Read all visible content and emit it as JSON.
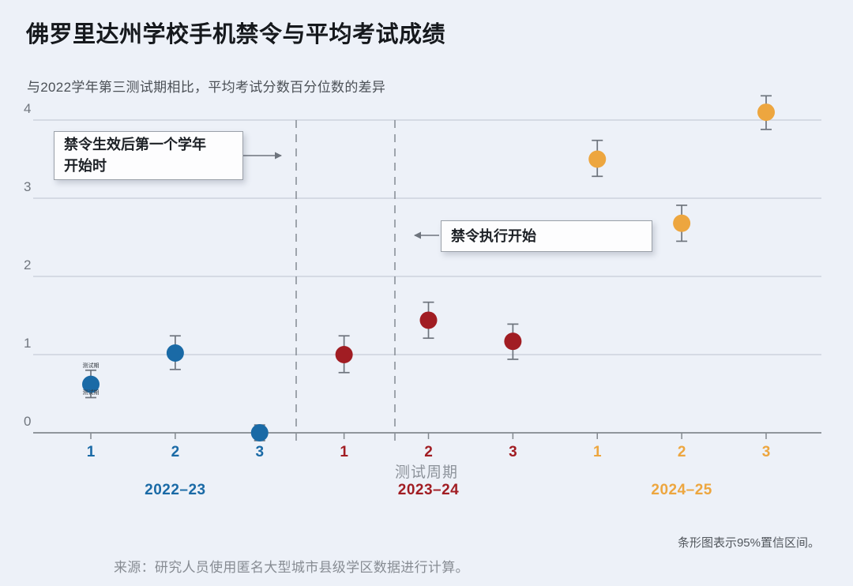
{
  "chart_data": {
    "type": "scatter",
    "title": "佛罗里达州学校手机禁令与平均考试成绩",
    "subtitle": "与2022学年第三测试期相比，平均考试分数百分位数的差异",
    "xlabel": "测试周期",
    "ylabel": "",
    "ylim": [
      -0.3,
      4.4
    ],
    "yticks": [
      0,
      1,
      2,
      3,
      4
    ],
    "grid": true,
    "legend_position": "none",
    "error_bars": "95% CI",
    "series": [
      {
        "name": "2022–23",
        "color": "#1a6aa6",
        "points": [
          {
            "period": "1",
            "value": 0.62,
            "ci": [
              0.45,
              0.8
            ]
          },
          {
            "period": "2",
            "value": 1.02,
            "ci": [
              0.81,
              1.24
            ]
          },
          {
            "period": "3",
            "value": 0.0,
            "ci": [
              -0.1,
              0.1
            ]
          }
        ]
      },
      {
        "name": "2023–24",
        "color": "#a11d23",
        "points": [
          {
            "period": "1",
            "value": 1.0,
            "ci": [
              0.77,
              1.24
            ]
          },
          {
            "period": "2",
            "value": 1.44,
            "ci": [
              1.21,
              1.67
            ]
          },
          {
            "period": "3",
            "value": 1.17,
            "ci": [
              0.94,
              1.39
            ]
          }
        ]
      },
      {
        "name": "2024–25",
        "color": "#eda63f",
        "points": [
          {
            "period": "1",
            "value": 3.5,
            "ci": [
              3.28,
              3.74
            ]
          },
          {
            "period": "2",
            "value": 2.68,
            "ci": [
              2.45,
              2.91
            ]
          },
          {
            "period": "3",
            "value": 4.1,
            "ci": [
              3.88,
              4.31
            ]
          }
        ]
      }
    ],
    "event_lines": [
      {
        "label_lines": [
          "禁令生效后第一个学年",
          "开始时"
        ],
        "arrow": "right",
        "between": [
          "2022–23 第3期",
          "2023–24 第1期"
        ]
      },
      {
        "label_lines": [
          "禁令执行开始"
        ],
        "arrow": "left",
        "between": [
          "2023–24 第1期",
          "2023–24 第2期"
        ]
      }
    ],
    "point_annotations": [
      {
        "text": "测试期",
        "placement": "above-first-point"
      },
      {
        "text": "测试期",
        "placement": "below-first-point"
      }
    ],
    "ci_note": "条形图表示95%置信区间。",
    "source": "来源：研究人员使用匿名大型城市县级学区数据进行计算。"
  }
}
